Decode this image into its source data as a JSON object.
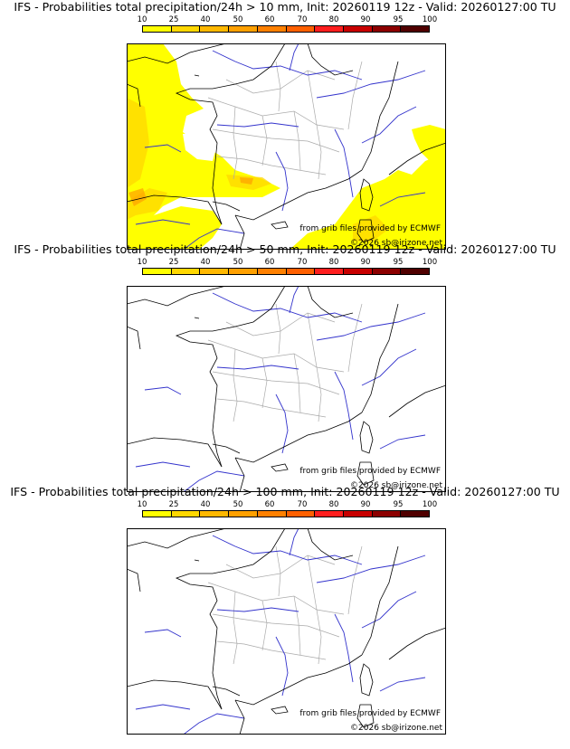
{
  "panels": [
    {
      "title": "IFS - Probabilities total precipitation/24h > 10 mm, Init: 20260119 12z - Valid: 20260127:00 TU",
      "shaded": true
    },
    {
      "title": "IFS - Probabilities total precipitation/24h > 50 mm, Init: 20260119 12z - Valid: 20260127:00 TU",
      "shaded": false
    },
    {
      "title": "IFS - Probabilities total precipitation/24h > 100 mm, Init: 20260119 12z - Valid: 20260127:00 TU",
      "shaded": false
    }
  ],
  "scale": {
    "ticks": [
      "10",
      "25",
      "40",
      "50",
      "60",
      "70",
      "80",
      "90",
      "95",
      "100"
    ],
    "colors": [
      "#ffff00",
      "#ffd700",
      "#ffb800",
      "#ffa000",
      "#ff8000",
      "#ff6000",
      "#ff1e1e",
      "#c80000",
      "#8c0000",
      "#500000"
    ]
  },
  "credits": {
    "grib": "from grib files provided by ECMWF",
    "copyright": "©2026 sb@irizone.net"
  },
  "map_colors": {
    "coast": "#000000",
    "rivers": "#3333cc",
    "borders": "#aaaaaa",
    "precip_light": "#ffff00",
    "precip_mid": "#ffd700",
    "precip_high": "#ffa000"
  }
}
